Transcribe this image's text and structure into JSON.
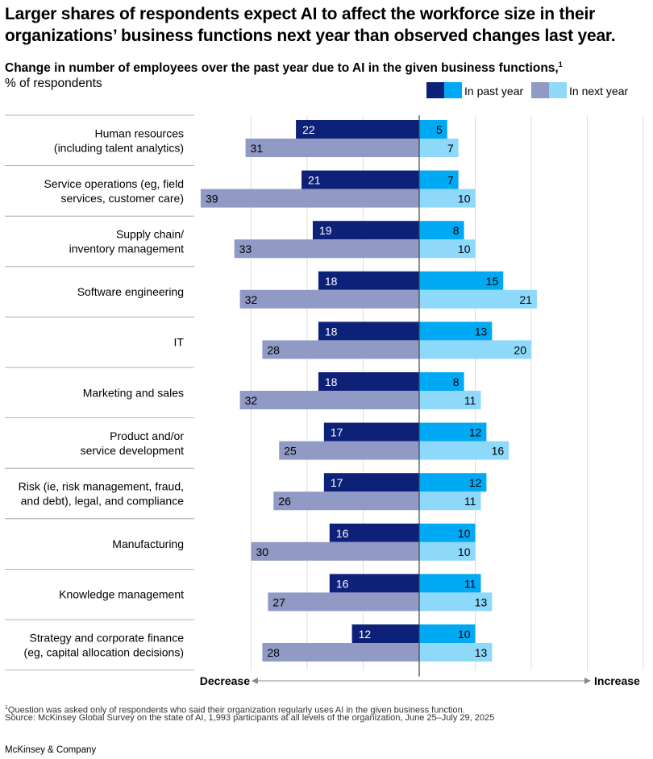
{
  "header": {
    "title": "Larger shares of respondents expect AI to affect the workforce size in their organizations’ business functions next year than observed changes last year.",
    "subtitle": "Change in number of employees over the past year due to AI in the given business functions,",
    "subtitle_note": "1",
    "unit": "% of respondents"
  },
  "legend": {
    "past_label": "In past year",
    "next_label": "In next year"
  },
  "colors": {
    "past_decrease": "#0E2178",
    "past_increase": "#00A9F4",
    "next_decrease": "#9199C5",
    "next_increase": "#8ED8FA",
    "axis": "#444444",
    "grid": "#DDDDDD"
  },
  "chart_data": {
    "type": "bar",
    "orientation": "horizontal-diverging",
    "title": "Change in number of employees over the past year due to AI in the given business functions",
    "unit": "% of respondents",
    "axis_left_label": "Decrease",
    "axis_right_label": "Increase",
    "categories": [
      [
        "Human resources",
        "(including talent analytics)"
      ],
      [
        "Service operations (eg, field",
        "services, customer care)"
      ],
      [
        "Supply chain/",
        "inventory management"
      ],
      [
        "Software engineering"
      ],
      [
        "IT"
      ],
      [
        "Marketing and sales"
      ],
      [
        "Product and/or",
        "service development"
      ],
      [
        "Risk (ie, risk management, fraud,",
        "and debt), legal, and compliance"
      ],
      [
        "Manufacturing"
      ],
      [
        "Knowledge management"
      ],
      [
        "Strategy and corporate finance",
        "(eg, capital allocation decisions)"
      ]
    ],
    "series": [
      {
        "name": "In past year – decrease",
        "values": [
          22,
          21,
          19,
          18,
          18,
          18,
          17,
          17,
          16,
          16,
          12
        ]
      },
      {
        "name": "In past year – increase",
        "values": [
          5,
          7,
          8,
          15,
          13,
          8,
          12,
          12,
          10,
          11,
          10
        ]
      },
      {
        "name": "In next year – decrease",
        "values": [
          31,
          39,
          33,
          32,
          28,
          32,
          25,
          26,
          30,
          27,
          28
        ]
      },
      {
        "name": "In next year – increase",
        "values": [
          7,
          10,
          10,
          21,
          20,
          11,
          16,
          11,
          10,
          13,
          13
        ]
      }
    ],
    "xlim": [
      -40,
      40
    ]
  },
  "notes": {
    "footnote_mark": "1",
    "footnote": "Question was asked only of respondents who said their organization regularly uses AI in the given business function.",
    "source": "Source: McKinsey Global Survey on the state of AI, 1,993 participants at all levels of the organization, June 25–July 29, 2025"
  },
  "brand": "McKinsey & Company"
}
